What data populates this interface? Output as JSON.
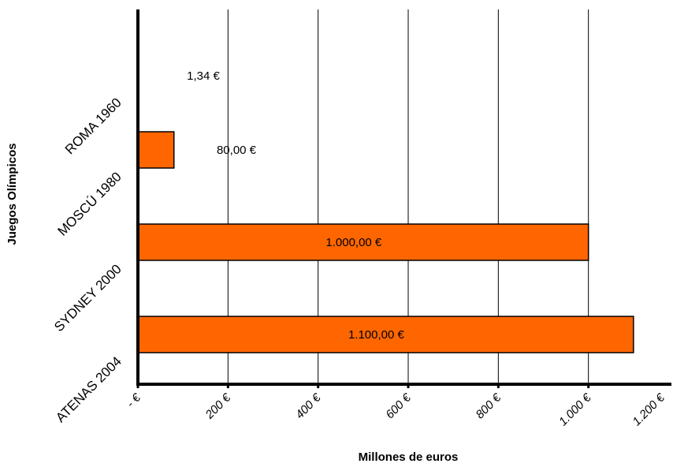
{
  "chart_data": {
    "type": "bar",
    "orientation": "horizontal",
    "categories": [
      "ATENAS 2004",
      "SYDNEY 2000",
      "MOSCÚ 1980",
      "ROMA 1960"
    ],
    "values": [
      1100,
      1000,
      80,
      1.34
    ],
    "data_labels": [
      "1.100,00 €",
      "1.000,00 €",
      "80,00 €",
      "1,34 €"
    ],
    "xlabel": "Millones de euros",
    "ylabel": "Juegos Olímpicos",
    "xlim": [
      0,
      1200
    ],
    "x_ticks": [
      0,
      200,
      400,
      600,
      800,
      1000,
      1200
    ],
    "x_tick_labels": [
      "- €",
      "200 €",
      "400 €",
      "600 €",
      "800 €",
      "1.000 €",
      "1.200 €"
    ],
    "grid": "vertical",
    "legend": "none",
    "colors": {
      "bar": "#ff6600",
      "bar_edge": "#000000",
      "grid": "#000000"
    }
  }
}
